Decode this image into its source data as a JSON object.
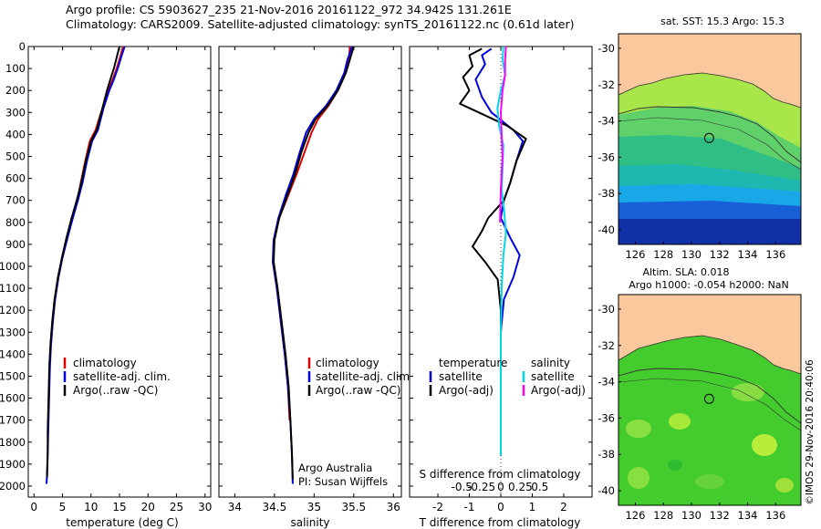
{
  "header": {
    "line1": "Argo profile: CS 5903627_235 21-Nov-2016 20161122_972 34.942S 131.261E",
    "line2": "Climatology: CARS2009. Satellite-adjusted climatology: synTS_20161122.nc (0.61d later)"
  },
  "depth_ticks": [
    "0",
    "100",
    "200",
    "300",
    "400",
    "500",
    "600",
    "700",
    "800",
    "900",
    "1000",
    "1100",
    "1200",
    "1300",
    "1400",
    "1500",
    "1600",
    "1700",
    "1800",
    "1900",
    "2000"
  ],
  "depth_tick_values": [
    0,
    100,
    200,
    300,
    400,
    500,
    600,
    700,
    800,
    900,
    1000,
    1100,
    1200,
    1300,
    1400,
    1500,
    1600,
    1700,
    1800,
    1900,
    2000
  ],
  "colors": {
    "climatology": "#e00000",
    "satellite": "#0000e0",
    "argo": "#000000",
    "sal_satellite": "#00d8e8",
    "sal_argo": "#ff00ff",
    "land": "#f9c89c"
  },
  "chart_data": [
    {
      "type": "line",
      "xlabel": "temperature (deg C)",
      "ylim": [
        0,
        2050
      ],
      "xlim": [
        -1,
        31
      ],
      "x_ticks": [
        "0",
        "5",
        "10",
        "15",
        "20",
        "25",
        "30"
      ],
      "x_tick_values": [
        0,
        5,
        10,
        15,
        20,
        25,
        30
      ],
      "legend": [
        "climatology",
        "satellite-adj. clim.",
        "Argo(..raw -QC)"
      ],
      "series": [
        {
          "name": "climatology",
          "color": "#e00000",
          "points": [
            [
              15.6,
              0
            ],
            [
              15.2,
              40
            ],
            [
              14.5,
              100
            ],
            [
              13.8,
              150
            ],
            [
              13.0,
              200
            ],
            [
              12.0,
              280
            ],
            [
              10.8,
              380
            ],
            [
              9.8,
              430
            ],
            [
              9.0,
              520
            ],
            [
              8.2,
              620
            ],
            [
              7.6,
              700
            ],
            [
              6.8,
              780
            ],
            [
              5.8,
              870
            ],
            [
              5.0,
              960
            ],
            [
              4.3,
              1050
            ],
            [
              3.7,
              1150
            ],
            [
              3.3,
              1250
            ],
            [
              3.0,
              1350
            ]
          ]
        },
        {
          "name": "satellite-adj. clim.",
          "color": "#0000e0",
          "points": [
            [
              15.9,
              0
            ],
            [
              15.4,
              40
            ],
            [
              14.7,
              100
            ],
            [
              14.0,
              150
            ],
            [
              13.2,
              200
            ],
            [
              12.2,
              280
            ],
            [
              11.2,
              380
            ],
            [
              10.2,
              430
            ],
            [
              9.3,
              520
            ],
            [
              8.5,
              620
            ],
            [
              7.7,
              700
            ],
            [
              6.8,
              780
            ],
            [
              5.9,
              870
            ],
            [
              5.0,
              960
            ],
            [
              4.3,
              1050
            ],
            [
              3.7,
              1150
            ],
            [
              3.3,
              1250
            ],
            [
              3.0,
              1350
            ],
            [
              2.8,
              1450
            ],
            [
              2.7,
              1550
            ],
            [
              2.6,
              1650
            ],
            [
              2.5,
              1750
            ],
            [
              2.4,
              1850
            ],
            [
              2.3,
              1950
            ],
            [
              2.2,
              1990
            ]
          ]
        },
        {
          "name": "Argo(..raw -QC)",
          "color": "#000000",
          "points": [
            [
              15.0,
              0
            ],
            [
              14.6,
              40
            ],
            [
              14.0,
              100
            ],
            [
              13.4,
              150
            ],
            [
              12.8,
              200
            ],
            [
              12.0,
              280
            ],
            [
              11.0,
              380
            ],
            [
              10.0,
              430
            ],
            [
              9.1,
              520
            ],
            [
              8.3,
              620
            ],
            [
              7.5,
              700
            ],
            [
              6.6,
              780
            ],
            [
              5.7,
              870
            ],
            [
              4.9,
              960
            ],
            [
              4.2,
              1050
            ],
            [
              3.6,
              1150
            ],
            [
              3.2,
              1250
            ],
            [
              2.9,
              1350
            ],
            [
              2.7,
              1450
            ],
            [
              2.6,
              1550
            ],
            [
              2.5,
              1650
            ],
            [
              2.4,
              1750
            ],
            [
              2.4,
              1850
            ],
            [
              2.3,
              1950
            ],
            [
              2.3,
              1960
            ]
          ]
        }
      ]
    },
    {
      "type": "line",
      "xlabel": "salinity",
      "ylim": [
        0,
        2050
      ],
      "xlim": [
        33.8,
        36.1
      ],
      "x_ticks": [
        "34",
        "34.5",
        "35",
        "35.5",
        "36"
      ],
      "x_tick_values": [
        34,
        34.5,
        35,
        35.5,
        36
      ],
      "legend": [
        "climatology",
        "satellite-adj. clim.",
        "Argo(..raw -QC)"
      ],
      "annotation": [
        "Argo Australia",
        "PI: Susan Wijffels"
      ],
      "series": [
        {
          "name": "climatology",
          "color": "#e00000",
          "points": [
            [
              35.45,
              0
            ],
            [
              35.44,
              60
            ],
            [
              35.4,
              120
            ],
            [
              35.3,
              200
            ],
            [
              35.18,
              270
            ],
            [
              35.05,
              330
            ],
            [
              34.97,
              390
            ],
            [
              34.88,
              480
            ],
            [
              34.78,
              580
            ],
            [
              34.67,
              680
            ],
            [
              34.56,
              780
            ],
            [
              34.49,
              880
            ],
            [
              34.48,
              980
            ],
            [
              34.53,
              1100
            ],
            [
              34.58,
              1250
            ],
            [
              34.63,
              1400
            ],
            [
              34.67,
              1550
            ],
            [
              34.69,
              1700
            ]
          ]
        },
        {
          "name": "satellite-adj. clim.",
          "color": "#0000e0",
          "points": [
            [
              35.48,
              0
            ],
            [
              35.42,
              60
            ],
            [
              35.38,
              120
            ],
            [
              35.28,
              200
            ],
            [
              35.15,
              270
            ],
            [
              35.0,
              330
            ],
            [
              34.9,
              390
            ],
            [
              34.82,
              480
            ],
            [
              34.74,
              580
            ],
            [
              34.64,
              680
            ],
            [
              34.55,
              780
            ],
            [
              34.49,
              880
            ],
            [
              34.48,
              980
            ],
            [
              34.53,
              1100
            ],
            [
              34.58,
              1250
            ],
            [
              34.63,
              1400
            ],
            [
              34.67,
              1550
            ],
            [
              34.7,
              1700
            ],
            [
              34.72,
              1850
            ],
            [
              34.73,
              1990
            ]
          ]
        },
        {
          "name": "Argo(..raw -QC)",
          "color": "#000000",
          "points": [
            [
              35.5,
              0
            ],
            [
              35.45,
              60
            ],
            [
              35.4,
              120
            ],
            [
              35.3,
              200
            ],
            [
              35.17,
              270
            ],
            [
              35.02,
              330
            ],
            [
              34.93,
              390
            ],
            [
              34.84,
              480
            ],
            [
              34.76,
              580
            ],
            [
              34.66,
              680
            ],
            [
              34.56,
              780
            ],
            [
              34.5,
              880
            ],
            [
              34.49,
              980
            ],
            [
              34.54,
              1100
            ],
            [
              34.59,
              1250
            ],
            [
              34.64,
              1400
            ],
            [
              34.68,
              1550
            ],
            [
              34.7,
              1700
            ],
            [
              34.72,
              1850
            ],
            [
              34.73,
              1970
            ]
          ]
        }
      ]
    },
    {
      "type": "line",
      "xlabel": "T difference from climatology",
      "title": "S difference from climatology",
      "ylim": [
        0,
        2050
      ],
      "xlim": [
        -2.9,
        2.9
      ],
      "x_ticks": [
        "-2",
        "-1",
        "0",
        "1",
        "2"
      ],
      "x_tick_values": [
        -2,
        -1,
        0,
        1,
        2
      ],
      "s_ticks": [
        "-0.5",
        "-0.25",
        "0",
        "0.25",
        "0.5"
      ],
      "s_tick_values": [
        -0.5,
        -0.25,
        0,
        0.25,
        0.5
      ],
      "legend_temperature": {
        "heading": "temperature",
        "items": [
          "satellite",
          "Argo(-adj)"
        ]
      },
      "legend_salinity": {
        "heading": "salinity",
        "items": [
          "satellite",
          "Argo(-adj)"
        ]
      },
      "series": [
        {
          "name": "temperature satellite",
          "color": "#0000e0",
          "points": [
            [
              -0.3,
              10
            ],
            [
              -0.6,
              40
            ],
            [
              -0.5,
              80
            ],
            [
              -0.8,
              150
            ],
            [
              -0.6,
              230
            ],
            [
              -0.3,
              300
            ],
            [
              0.4,
              380
            ],
            [
              0.7,
              430
            ],
            [
              0.5,
              520
            ],
            [
              0.3,
              620
            ],
            [
              0.1,
              700
            ],
            [
              0.0,
              780
            ],
            [
              0.3,
              870
            ],
            [
              0.6,
              950
            ],
            [
              0.4,
              1050
            ],
            [
              0.1,
              1150
            ],
            [
              0.0,
              1300
            ],
            [
              0.0,
              1500
            ],
            [
              0.0,
              1700
            ],
            [
              0.0,
              1860
            ]
          ]
        },
        {
          "name": "temperature Argo(-adj)",
          "color": "#000000",
          "points": [
            [
              -0.6,
              10
            ],
            [
              -1.0,
              40
            ],
            [
              -0.9,
              90
            ],
            [
              -1.2,
              140
            ],
            [
              -1.0,
              200
            ],
            [
              -1.3,
              260
            ],
            [
              -0.7,
              300
            ],
            [
              0.2,
              360
            ],
            [
              0.8,
              420
            ],
            [
              0.5,
              520
            ],
            [
              0.3,
              620
            ],
            [
              0.1,
              700
            ],
            [
              -0.4,
              780
            ],
            [
              -0.6,
              840
            ],
            [
              -0.9,
              910
            ],
            [
              -0.5,
              980
            ],
            [
              -0.1,
              1060
            ],
            [
              0.0,
              1200
            ],
            [
              0.0,
              1400
            ],
            [
              0.0,
              1700
            ],
            [
              0.0,
              1860
            ]
          ]
        },
        {
          "name": "salinity satellite",
          "color": "#00d8e8",
          "points": [
            [
              0.03,
              0
            ],
            [
              0.02,
              60
            ],
            [
              0.05,
              130
            ],
            [
              0.0,
              200
            ],
            [
              -0.04,
              280
            ],
            [
              -0.02,
              360
            ],
            [
              0.03,
              450
            ],
            [
              0.02,
              560
            ],
            [
              0.01,
              650
            ],
            [
              0.04,
              750
            ],
            [
              0.06,
              850
            ],
            [
              0.03,
              950
            ],
            [
              0.01,
              1100
            ],
            [
              0.0,
              1300
            ],
            [
              0.0,
              1500
            ],
            [
              0.0,
              1700
            ],
            [
              0.0,
              1860
            ]
          ]
        },
        {
          "name": "salinity Argo(-adj)",
          "color": "#ff00ff",
          "points": [
            [
              0.06,
              0
            ],
            [
              0.05,
              60
            ],
            [
              0.05,
              130
            ],
            [
              0.02,
              200
            ],
            [
              0.0,
              300
            ],
            [
              0.01,
              400
            ],
            [
              0.02,
              500
            ],
            [
              0.0,
              650
            ],
            [
              -0.01,
              800
            ]
          ]
        }
      ]
    }
  ],
  "maps": {
    "x_ticks": [
      "126",
      "128",
      "130",
      "132",
      "134",
      "136"
    ],
    "x_tick_values": [
      126,
      128,
      130,
      132,
      134,
      136
    ],
    "y_ticks": [
      "-30",
      "-32",
      "-34",
      "-36",
      "-38",
      "-40"
    ],
    "y_tick_values": [
      -30,
      -32,
      -34,
      -36,
      -38,
      -40
    ],
    "lon_range": [
      124.8,
      137.8
    ],
    "lat_range": [
      -29.2,
      -40.8
    ],
    "float_lon": 131.261,
    "float_lat": -34.942,
    "sst": {
      "title": "sat. SST: 15.3 Argo: 15.3"
    },
    "sla": {
      "title1": "Altim. SLA: 0.018",
      "title2": "Argo h1000: -0.054 h2000: NaN"
    }
  },
  "footer": {
    "credit": "©IMOS 29-Nov-2016 20:40:06"
  }
}
